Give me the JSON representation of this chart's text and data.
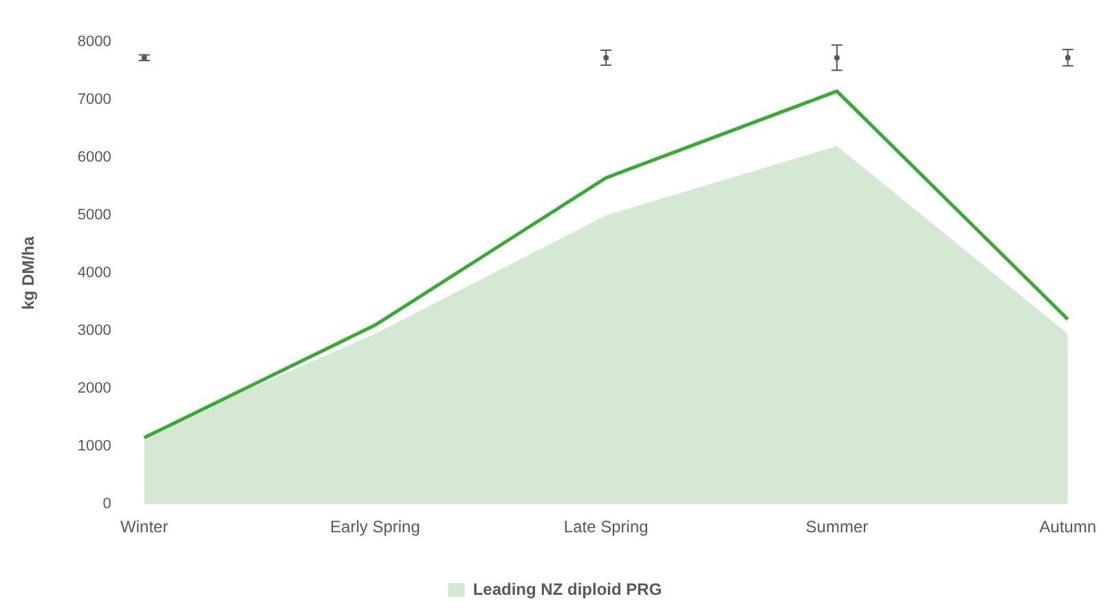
{
  "chart_data": {
    "type": "area",
    "ylabel": "kg DM/ha",
    "categories": [
      "Winter",
      "Early Spring",
      "Late Spring",
      "Summer",
      "Autumn"
    ],
    "ylim": [
      0,
      8000
    ],
    "yticks": [
      0,
      1000,
      2000,
      3000,
      4000,
      5000,
      6000,
      7000,
      8000
    ],
    "grid": false,
    "legend": "bottom",
    "series": [
      {
        "name": "Leading NZ diploid PRG",
        "color": "#d5e8d4",
        "values": [
          1200,
          2950,
          5000,
          6200,
          2950
        ]
      },
      {
        "type": "line",
        "color": "#3aaa35",
        "values": [
          1150,
          3100,
          5650,
          7150,
          3200
        ]
      },
      {
        "type": "scatter",
        "color": "#595959",
        "x": [
          "Winter",
          "Late Spring",
          "Summer",
          "Autumn"
        ],
        "values": [
          7730,
          7730,
          7730,
          7730
        ],
        "errors": [
          50,
          130,
          220,
          140
        ]
      }
    ]
  }
}
